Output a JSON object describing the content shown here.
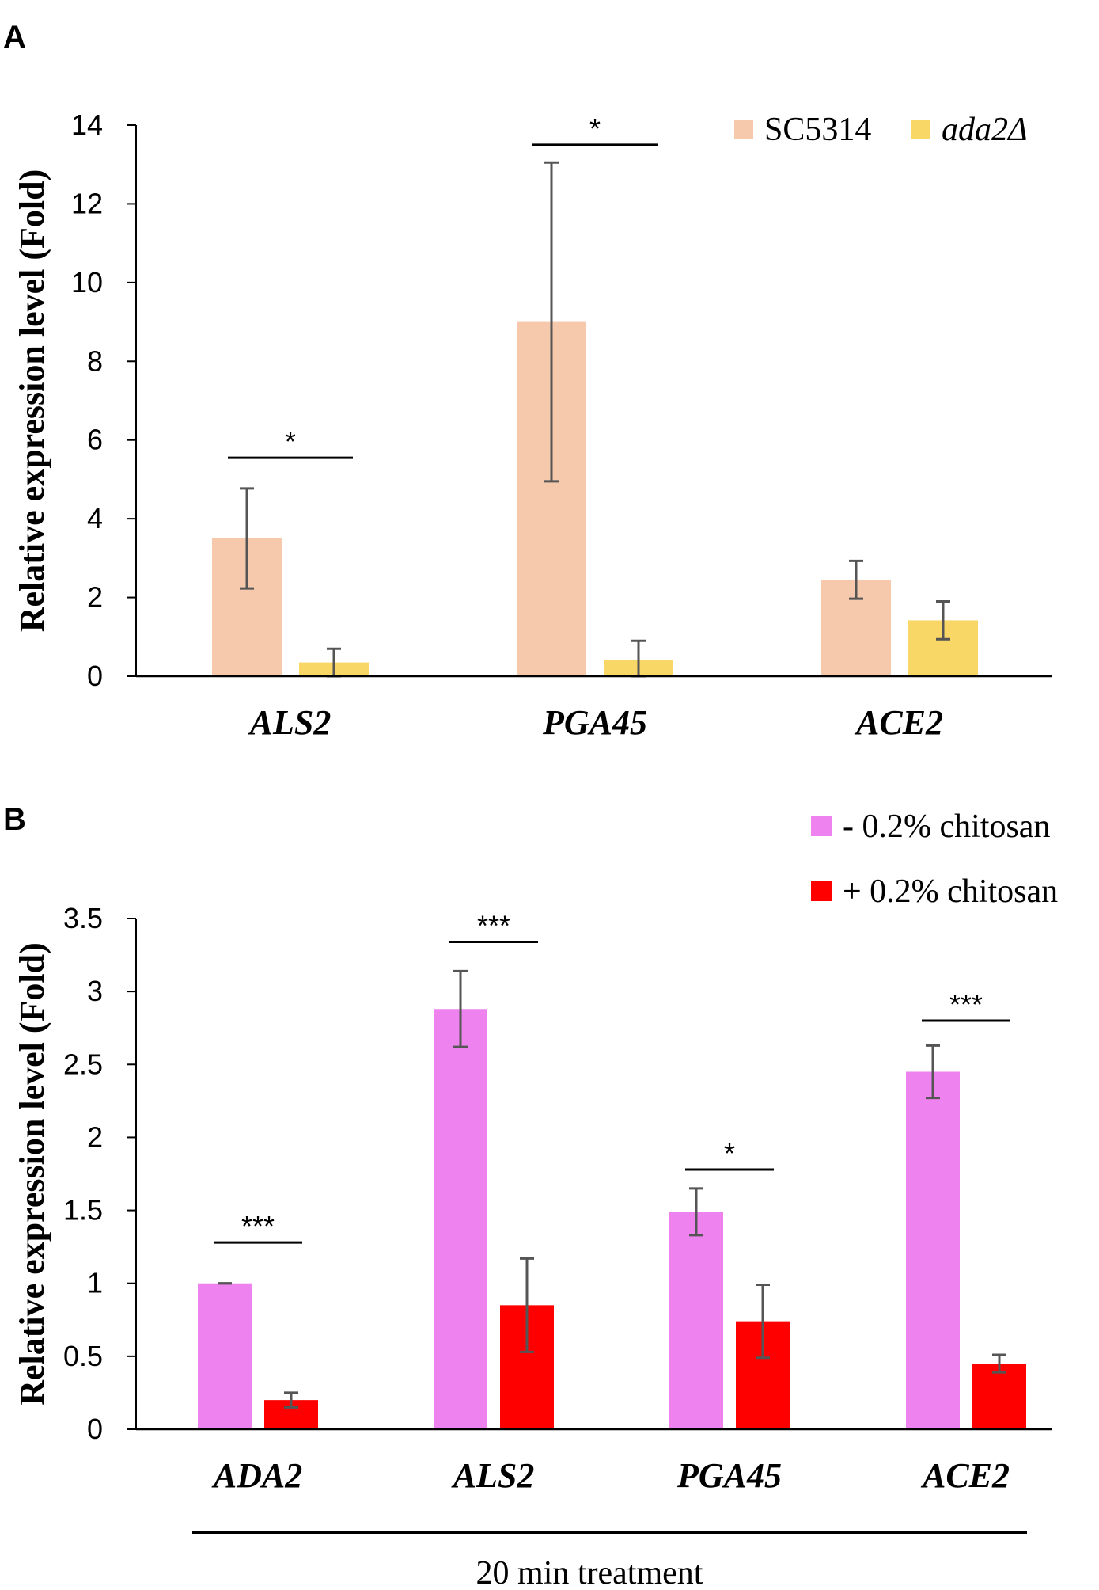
{
  "chart_data": [
    {
      "panel": "A",
      "type": "bar",
      "ylabel": "Relative expression level (Fold)",
      "xlabel": "",
      "ylim": [
        0,
        14
      ],
      "yticks": [
        "0",
        "2",
        "4",
        "6",
        "8",
        "10",
        "12",
        "14"
      ],
      "ytick_values": [
        0,
        2,
        4,
        6,
        8,
        10,
        12,
        14
      ],
      "categories": [
        "ALS2",
        "PGA45",
        "ACE2"
      ],
      "series": [
        {
          "name": "SC5314",
          "color": "#f6c9ad",
          "values": [
            3.5,
            9.0,
            2.45
          ],
          "errors": [
            1.27,
            4.05,
            0.48
          ]
        },
        {
          "name": "ada2Δ",
          "color": "#f8d766",
          "values": [
            0.35,
            0.42,
            1.42
          ],
          "errors": [
            0.35,
            0.48,
            0.48
          ]
        }
      ],
      "significance": [
        {
          "category": "ALS2",
          "label": "*",
          "level": 5.55
        },
        {
          "category": "PGA45",
          "label": "*",
          "level": 13.5
        }
      ],
      "legend_position": "top-right"
    },
    {
      "panel": "B",
      "type": "bar",
      "ylabel": "Relative expression level (Fold)",
      "xlabel": "20 min treatment",
      "ylim": [
        0,
        3.5
      ],
      "yticks": [
        "0",
        "0.5",
        "1",
        "1.5",
        "2",
        "2.5",
        "3",
        "3.5"
      ],
      "ytick_values": [
        0,
        0.5,
        1,
        1.5,
        2,
        2.5,
        3,
        3.5
      ],
      "categories": [
        "ADA2",
        "ALS2",
        "PGA45",
        "ACE2"
      ],
      "series": [
        {
          "name": "- 0.2% chitosan",
          "color": "#ee82ee",
          "values": [
            1.0,
            2.88,
            1.49,
            2.45
          ],
          "errors": [
            0.0,
            0.26,
            0.16,
            0.18
          ]
        },
        {
          "name": "+ 0.2% chitosan",
          "color": "#ff0000",
          "values": [
            0.2,
            0.85,
            0.74,
            0.45
          ],
          "errors": [
            0.05,
            0.32,
            0.25,
            0.06
          ]
        }
      ],
      "significance": [
        {
          "category": "ADA2",
          "label": "***",
          "level": 1.28
        },
        {
          "category": "ALS2",
          "label": "***",
          "level": 3.34
        },
        {
          "category": "PGA45",
          "label": "*",
          "level": 1.78
        },
        {
          "category": "ACE2",
          "label": "***",
          "level": 2.8
        }
      ],
      "legend_position": "top-right"
    }
  ]
}
